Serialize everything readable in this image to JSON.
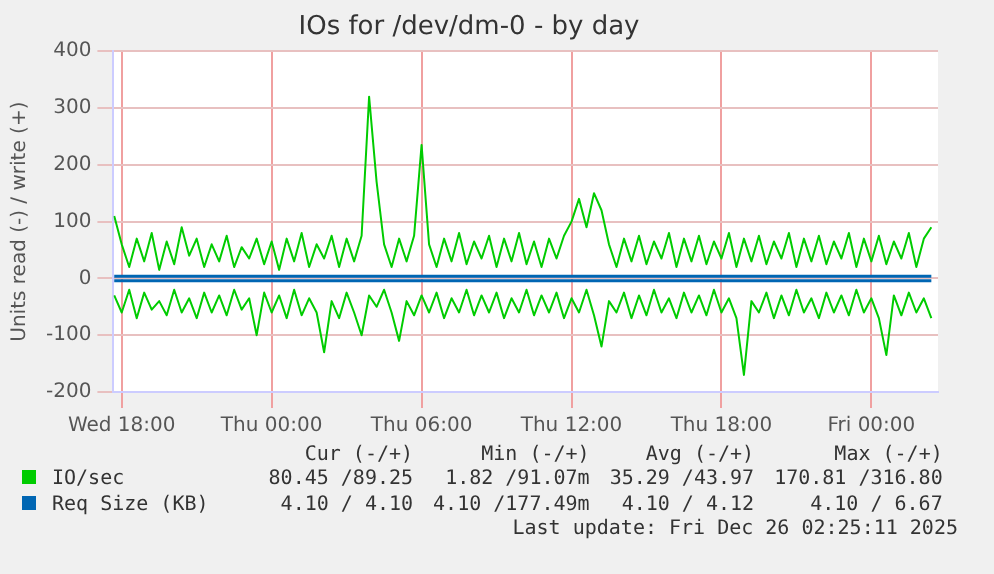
{
  "chart_data": {
    "type": "line",
    "title": "IOs for /dev/dm-0 - by day",
    "ylabel": "Units read (-) / write (+)",
    "xlim": [
      "2025-12-24T17:40",
      "2025-12-26T02:40"
    ],
    "ylim": [
      -200,
      400
    ],
    "yticks": [
      -200,
      -100,
      0,
      100,
      200,
      300,
      400
    ],
    "xticks": [
      {
        "value": "2025-12-24T18:00",
        "label": "Wed 18:00"
      },
      {
        "value": "2025-12-25T00:00",
        "label": "Thu 00:00"
      },
      {
        "value": "2025-12-25T06:00",
        "label": "Thu 06:00"
      },
      {
        "value": "2025-12-25T12:00",
        "label": "Thu 12:00"
      },
      {
        "value": "2025-12-25T18:00",
        "label": "Thu 18:00"
      },
      {
        "value": "2025-12-26T00:00",
        "label": "Fri 00:00"
      }
    ],
    "x": [
      "2025-12-24T17:42",
      "2025-12-24T18:00",
      "2025-12-24T18:18",
      "2025-12-24T18:36",
      "2025-12-24T18:54",
      "2025-12-24T19:12",
      "2025-12-24T19:30",
      "2025-12-24T19:48",
      "2025-12-24T20:06",
      "2025-12-24T20:24",
      "2025-12-24T20:42",
      "2025-12-24T21:00",
      "2025-12-24T21:18",
      "2025-12-24T21:36",
      "2025-12-24T21:54",
      "2025-12-24T22:12",
      "2025-12-24T22:30",
      "2025-12-24T22:48",
      "2025-12-24T23:06",
      "2025-12-24T23:24",
      "2025-12-24T23:42",
      "2025-12-25T00:00",
      "2025-12-25T00:18",
      "2025-12-25T00:36",
      "2025-12-25T00:54",
      "2025-12-25T01:12",
      "2025-12-25T01:30",
      "2025-12-25T01:48",
      "2025-12-25T02:06",
      "2025-12-25T02:24",
      "2025-12-25T02:42",
      "2025-12-25T03:00",
      "2025-12-25T03:18",
      "2025-12-25T03:36",
      "2025-12-25T03:54",
      "2025-12-25T04:12",
      "2025-12-25T04:30",
      "2025-12-25T04:48",
      "2025-12-25T05:06",
      "2025-12-25T05:24",
      "2025-12-25T05:42",
      "2025-12-25T06:00",
      "2025-12-25T06:18",
      "2025-12-25T06:36",
      "2025-12-25T06:54",
      "2025-12-25T07:12",
      "2025-12-25T07:30",
      "2025-12-25T07:48",
      "2025-12-25T08:06",
      "2025-12-25T08:24",
      "2025-12-25T08:42",
      "2025-12-25T09:00",
      "2025-12-25T09:18",
      "2025-12-25T09:36",
      "2025-12-25T09:54",
      "2025-12-25T10:12",
      "2025-12-25T10:30",
      "2025-12-25T10:48",
      "2025-12-25T11:06",
      "2025-12-25T11:24",
      "2025-12-25T11:42",
      "2025-12-25T12:00",
      "2025-12-25T12:18",
      "2025-12-25T12:36",
      "2025-12-25T12:54",
      "2025-12-25T13:12",
      "2025-12-25T13:30",
      "2025-12-25T13:48",
      "2025-12-25T14:06",
      "2025-12-25T14:24",
      "2025-12-25T14:42",
      "2025-12-25T15:00",
      "2025-12-25T15:18",
      "2025-12-25T15:36",
      "2025-12-25T15:54",
      "2025-12-25T16:12",
      "2025-12-25T16:30",
      "2025-12-25T16:48",
      "2025-12-25T17:06",
      "2025-12-25T17:24",
      "2025-12-25T17:42",
      "2025-12-25T18:00",
      "2025-12-25T18:18",
      "2025-12-25T18:36",
      "2025-12-25T18:54",
      "2025-12-25T19:12",
      "2025-12-25T19:30",
      "2025-12-25T19:48",
      "2025-12-25T20:06",
      "2025-12-25T20:24",
      "2025-12-25T20:42",
      "2025-12-25T21:00",
      "2025-12-25T21:18",
      "2025-12-25T21:36",
      "2025-12-25T21:54",
      "2025-12-25T22:12",
      "2025-12-25T22:30",
      "2025-12-25T22:48",
      "2025-12-25T23:06",
      "2025-12-25T23:24",
      "2025-12-25T23:42",
      "2025-12-26T00:00",
      "2025-12-26T00:18",
      "2025-12-26T00:36",
      "2025-12-26T00:54",
      "2025-12-26T01:12",
      "2025-12-26T01:30",
      "2025-12-26T01:48",
      "2025-12-26T02:06",
      "2025-12-26T02:24"
    ],
    "grid": true,
    "legend": "bottom",
    "marker": "none",
    "line_style": "solid",
    "series": [
      {
        "name": "IO/sec",
        "color": "#00cc00",
        "values": [
          110,
          60,
          20,
          70,
          30,
          80,
          15,
          65,
          25,
          90,
          40,
          70,
          20,
          60,
          30,
          75,
          20,
          55,
          35,
          70,
          25,
          65,
          15,
          70,
          30,
          80,
          20,
          60,
          35,
          75,
          20,
          70,
          30,
          75,
          320,
          170,
          60,
          20,
          70,
          30,
          75,
          235,
          60,
          20,
          70,
          30,
          80,
          25,
          65,
          35,
          75,
          20,
          70,
          30,
          80,
          25,
          65,
          20,
          70,
          35,
          75,
          100,
          140,
          90,
          150,
          120,
          60,
          20,
          70,
          30,
          75,
          25,
          65,
          35,
          80,
          20,
          70,
          30,
          75,
          25,
          65,
          35,
          80,
          20,
          70,
          30,
          75,
          25,
          65,
          35,
          80,
          20,
          70,
          30,
          75,
          25,
          65,
          35,
          80,
          20,
          70,
          30,
          75,
          25,
          65,
          35,
          80,
          20,
          70,
          90
        ]
      },
      {
        "color": "#00cc00",
        "values": [
          -30,
          -60,
          -20,
          -70,
          -25,
          -55,
          -40,
          -65,
          -20,
          -60,
          -35,
          -70,
          -25,
          -60,
          -30,
          -65,
          -20,
          -55,
          -35,
          -100,
          -25,
          -60,
          -30,
          -70,
          -20,
          -65,
          -35,
          -60,
          -130,
          -40,
          -70,
          -25,
          -60,
          -100,
          -30,
          -50,
          -20,
          -60,
          -110,
          -40,
          -65,
          -30,
          -60,
          -25,
          -70,
          -35,
          -60,
          -20,
          -65,
          -30,
          -60,
          -25,
          -70,
          -35,
          -60,
          -20,
          -65,
          -30,
          -60,
          -25,
          -70,
          -35,
          -60,
          -20,
          -65,
          -120,
          -40,
          -60,
          -25,
          -70,
          -30,
          -65,
          -20,
          -60,
          -35,
          -70,
          -25,
          -60,
          -30,
          -65,
          -20,
          -60,
          -35,
          -70,
          -170,
          -40,
          -60,
          -25,
          -70,
          -30,
          -65,
          -20,
          -60,
          -35,
          -70,
          -25,
          -60,
          -30,
          -65,
          -20,
          -60,
          -35,
          -70,
          -135,
          -30,
          -65,
          -25,
          -60,
          -35,
          -70
        ]
      },
      {
        "name": "Req Size (KB)",
        "color": "#0066b3",
        "x": [
          "2025-12-24T17:42",
          "2025-12-26T02:24"
        ],
        "values": [
          4,
          4
        ]
      },
      {
        "color": "#0066b3",
        "x": [
          "2025-12-24T17:42",
          "2025-12-26T02:24"
        ],
        "values": [
          -4,
          -4
        ]
      }
    ],
    "annotations": [
      "Cur (-/+)",
      "Min (-/+)",
      "Avg (-/+)",
      "Max (-/+)",
      "80.45 /89.25",
      "1.82 /91.07m",
      "35.29 /43.97",
      "170.81 /316.80",
      "4.10 / 4.10",
      "4.10 /177.49m",
      "4.10 / 4.12",
      "4.10 / 6.67",
      "Last update: Fri Dec 26 02:25:11 2025"
    ]
  }
}
